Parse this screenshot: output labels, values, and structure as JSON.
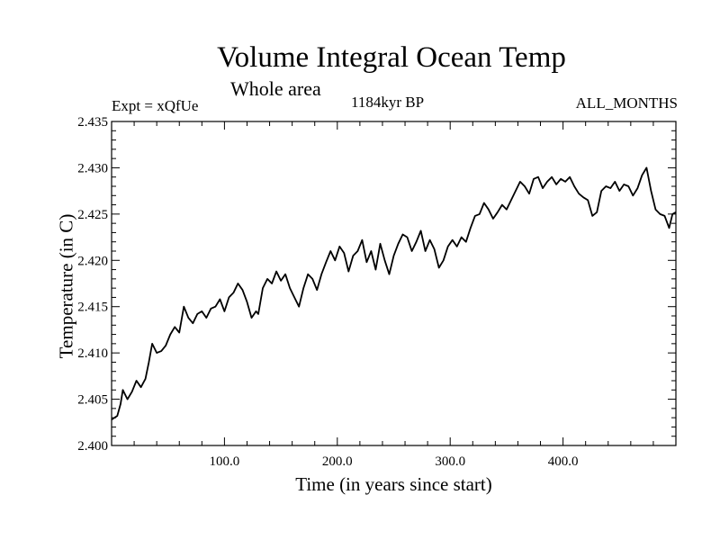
{
  "header": {
    "title": "Volume Integral Ocean Temp",
    "subtitle": "Whole area",
    "expt": "Expt = xQfUe",
    "period": "1184kyr BP",
    "months": "ALL_MONTHS"
  },
  "chart_data": {
    "type": "line",
    "title": "Volume Integral Ocean Temp",
    "subtitle": "Whole area",
    "xlabel": "Time (in years since start)",
    "ylabel": "Temperature (in C)",
    "xlim": [
      0,
      500
    ],
    "ylim": [
      2.4,
      2.435
    ],
    "xticks": [
      100,
      200,
      300,
      400
    ],
    "xtick_labels": [
      "100.0",
      "200.0",
      "300.0",
      "400.0"
    ],
    "yticks": [
      2.4,
      2.405,
      2.41,
      2.415,
      2.42,
      2.425,
      2.43,
      2.435
    ],
    "ytick_labels": [
      "2.400",
      "2.405",
      "2.410",
      "2.415",
      "2.420",
      "2.425",
      "2.430",
      "2.435"
    ],
    "grid": false,
    "series": [
      {
        "name": "Volume Integral Ocean Temp",
        "x": [
          0,
          5,
          8,
          10,
          14,
          18,
          22,
          26,
          30,
          33,
          36,
          40,
          44,
          48,
          52,
          56,
          60,
          64,
          68,
          72,
          76,
          80,
          84,
          88,
          92,
          96,
          100,
          104,
          108,
          112,
          116,
          120,
          124,
          128,
          130,
          134,
          138,
          142,
          146,
          150,
          154,
          158,
          162,
          166,
          170,
          174,
          178,
          182,
          186,
          190,
          194,
          198,
          202,
          206,
          210,
          214,
          218,
          222,
          226,
          230,
          234,
          238,
          242,
          246,
          250,
          254,
          258,
          262,
          266,
          270,
          274,
          278,
          282,
          286,
          290,
          294,
          298,
          302,
          306,
          310,
          314,
          318,
          322,
          326,
          330,
          334,
          338,
          342,
          346,
          350,
          354,
          358,
          362,
          366,
          370,
          374,
          378,
          382,
          386,
          390,
          394,
          398,
          402,
          406,
          410,
          414,
          418,
          422,
          426,
          430,
          434,
          438,
          442,
          446,
          450,
          454,
          458,
          462,
          466,
          470,
          474,
          478,
          482,
          486,
          490,
          494,
          497,
          500
        ],
        "values": [
          2.4028,
          2.4032,
          2.4045,
          2.406,
          2.405,
          2.4058,
          2.407,
          2.4063,
          2.4072,
          2.409,
          2.411,
          2.41,
          2.4102,
          2.4108,
          2.412,
          2.4128,
          2.4122,
          2.415,
          2.4138,
          2.4132,
          2.4142,
          2.4145,
          2.4138,
          2.4148,
          2.415,
          2.4158,
          2.4145,
          2.416,
          2.4165,
          2.4175,
          2.4168,
          2.4155,
          2.4138,
          2.4145,
          2.4142,
          2.417,
          2.418,
          2.4175,
          2.4188,
          2.4178,
          2.4185,
          2.417,
          2.416,
          2.415,
          2.417,
          2.4185,
          2.418,
          2.4168,
          2.4185,
          2.4198,
          2.421,
          2.42,
          2.4215,
          2.4208,
          2.4188,
          2.4205,
          2.421,
          2.4222,
          2.4198,
          2.421,
          2.419,
          2.4218,
          2.42,
          2.4185,
          2.4205,
          2.4218,
          2.4228,
          2.4225,
          2.421,
          2.422,
          2.4232,
          2.421,
          2.4222,
          2.4212,
          2.4192,
          2.42,
          2.4215,
          2.4222,
          2.4215,
          2.4225,
          2.422,
          2.4235,
          2.4248,
          2.425,
          2.4262,
          2.4255,
          2.4245,
          2.4252,
          2.426,
          2.4255,
          2.4265,
          2.4275,
          2.4285,
          2.428,
          2.4272,
          2.4288,
          2.429,
          2.4278,
          2.4285,
          2.429,
          2.4282,
          2.4288,
          2.4285,
          2.429,
          2.428,
          2.4272,
          2.4268,
          2.4265,
          2.4248,
          2.4252,
          2.4275,
          2.428,
          2.4278,
          2.4285,
          2.4275,
          2.4282,
          2.428,
          2.427,
          2.4278,
          2.4292,
          2.43,
          2.4275,
          2.4255,
          2.425,
          2.4248,
          2.4235,
          2.425,
          2.4252
        ]
      }
    ]
  }
}
